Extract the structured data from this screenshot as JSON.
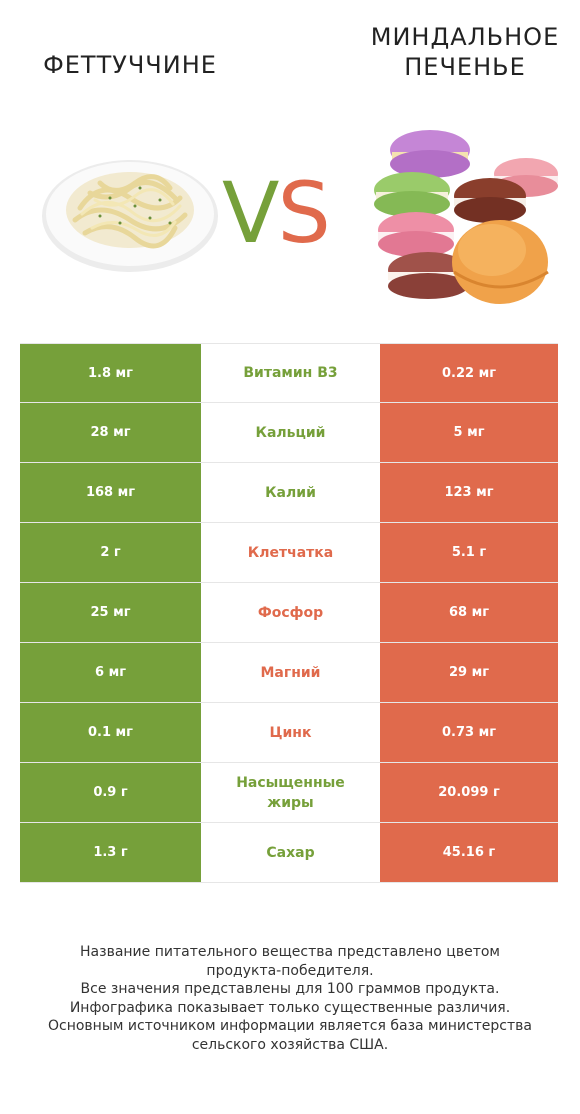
{
  "header": {
    "left_title": "ФЕТТУЧЧИНЕ",
    "right_title_line1": "МИНДАЛЬНОЕ",
    "right_title_line2": "ПЕЧЕНЬЕ",
    "vs_v": "V",
    "vs_s": "S"
  },
  "colors": {
    "left": "#76a03a",
    "right": "#e06a4c"
  },
  "rows": [
    {
      "left": "1.8 мг",
      "name": "Витамин B3",
      "right": "0.22 мг",
      "winner": "left"
    },
    {
      "left": "28 мг",
      "name": "Кальций",
      "right": "5 мг",
      "winner": "left"
    },
    {
      "left": "168 мг",
      "name": "Калий",
      "right": "123 мг",
      "winner": "left"
    },
    {
      "left": "2 г",
      "name": "Клетчатка",
      "right": "5.1 г",
      "winner": "right"
    },
    {
      "left": "25 мг",
      "name": "Фосфор",
      "right": "68 мг",
      "winner": "right"
    },
    {
      "left": "6 мг",
      "name": "Магний",
      "right": "29 мг",
      "winner": "right"
    },
    {
      "left": "0.1 мг",
      "name": "Цинк",
      "right": "0.73 мг",
      "winner": "right"
    },
    {
      "left": "0.9 г",
      "name": "Насыщенные жиры",
      "right": "20.099 г",
      "winner": "left"
    },
    {
      "left": "1.3 г",
      "name": "Сахар",
      "right": "45.16 г",
      "winner": "left"
    }
  ],
  "footer": {
    "line1": "Название питательного вещества представлено цветом",
    "line2": "продукта-победителя.",
    "line3": "Все значения представлены для 100 граммов продукта.",
    "line4": "Инфографика показывает только существенные различия.",
    "line5": "Основным источником информации является база министерства",
    "line6": "сельского хозяйства США."
  }
}
